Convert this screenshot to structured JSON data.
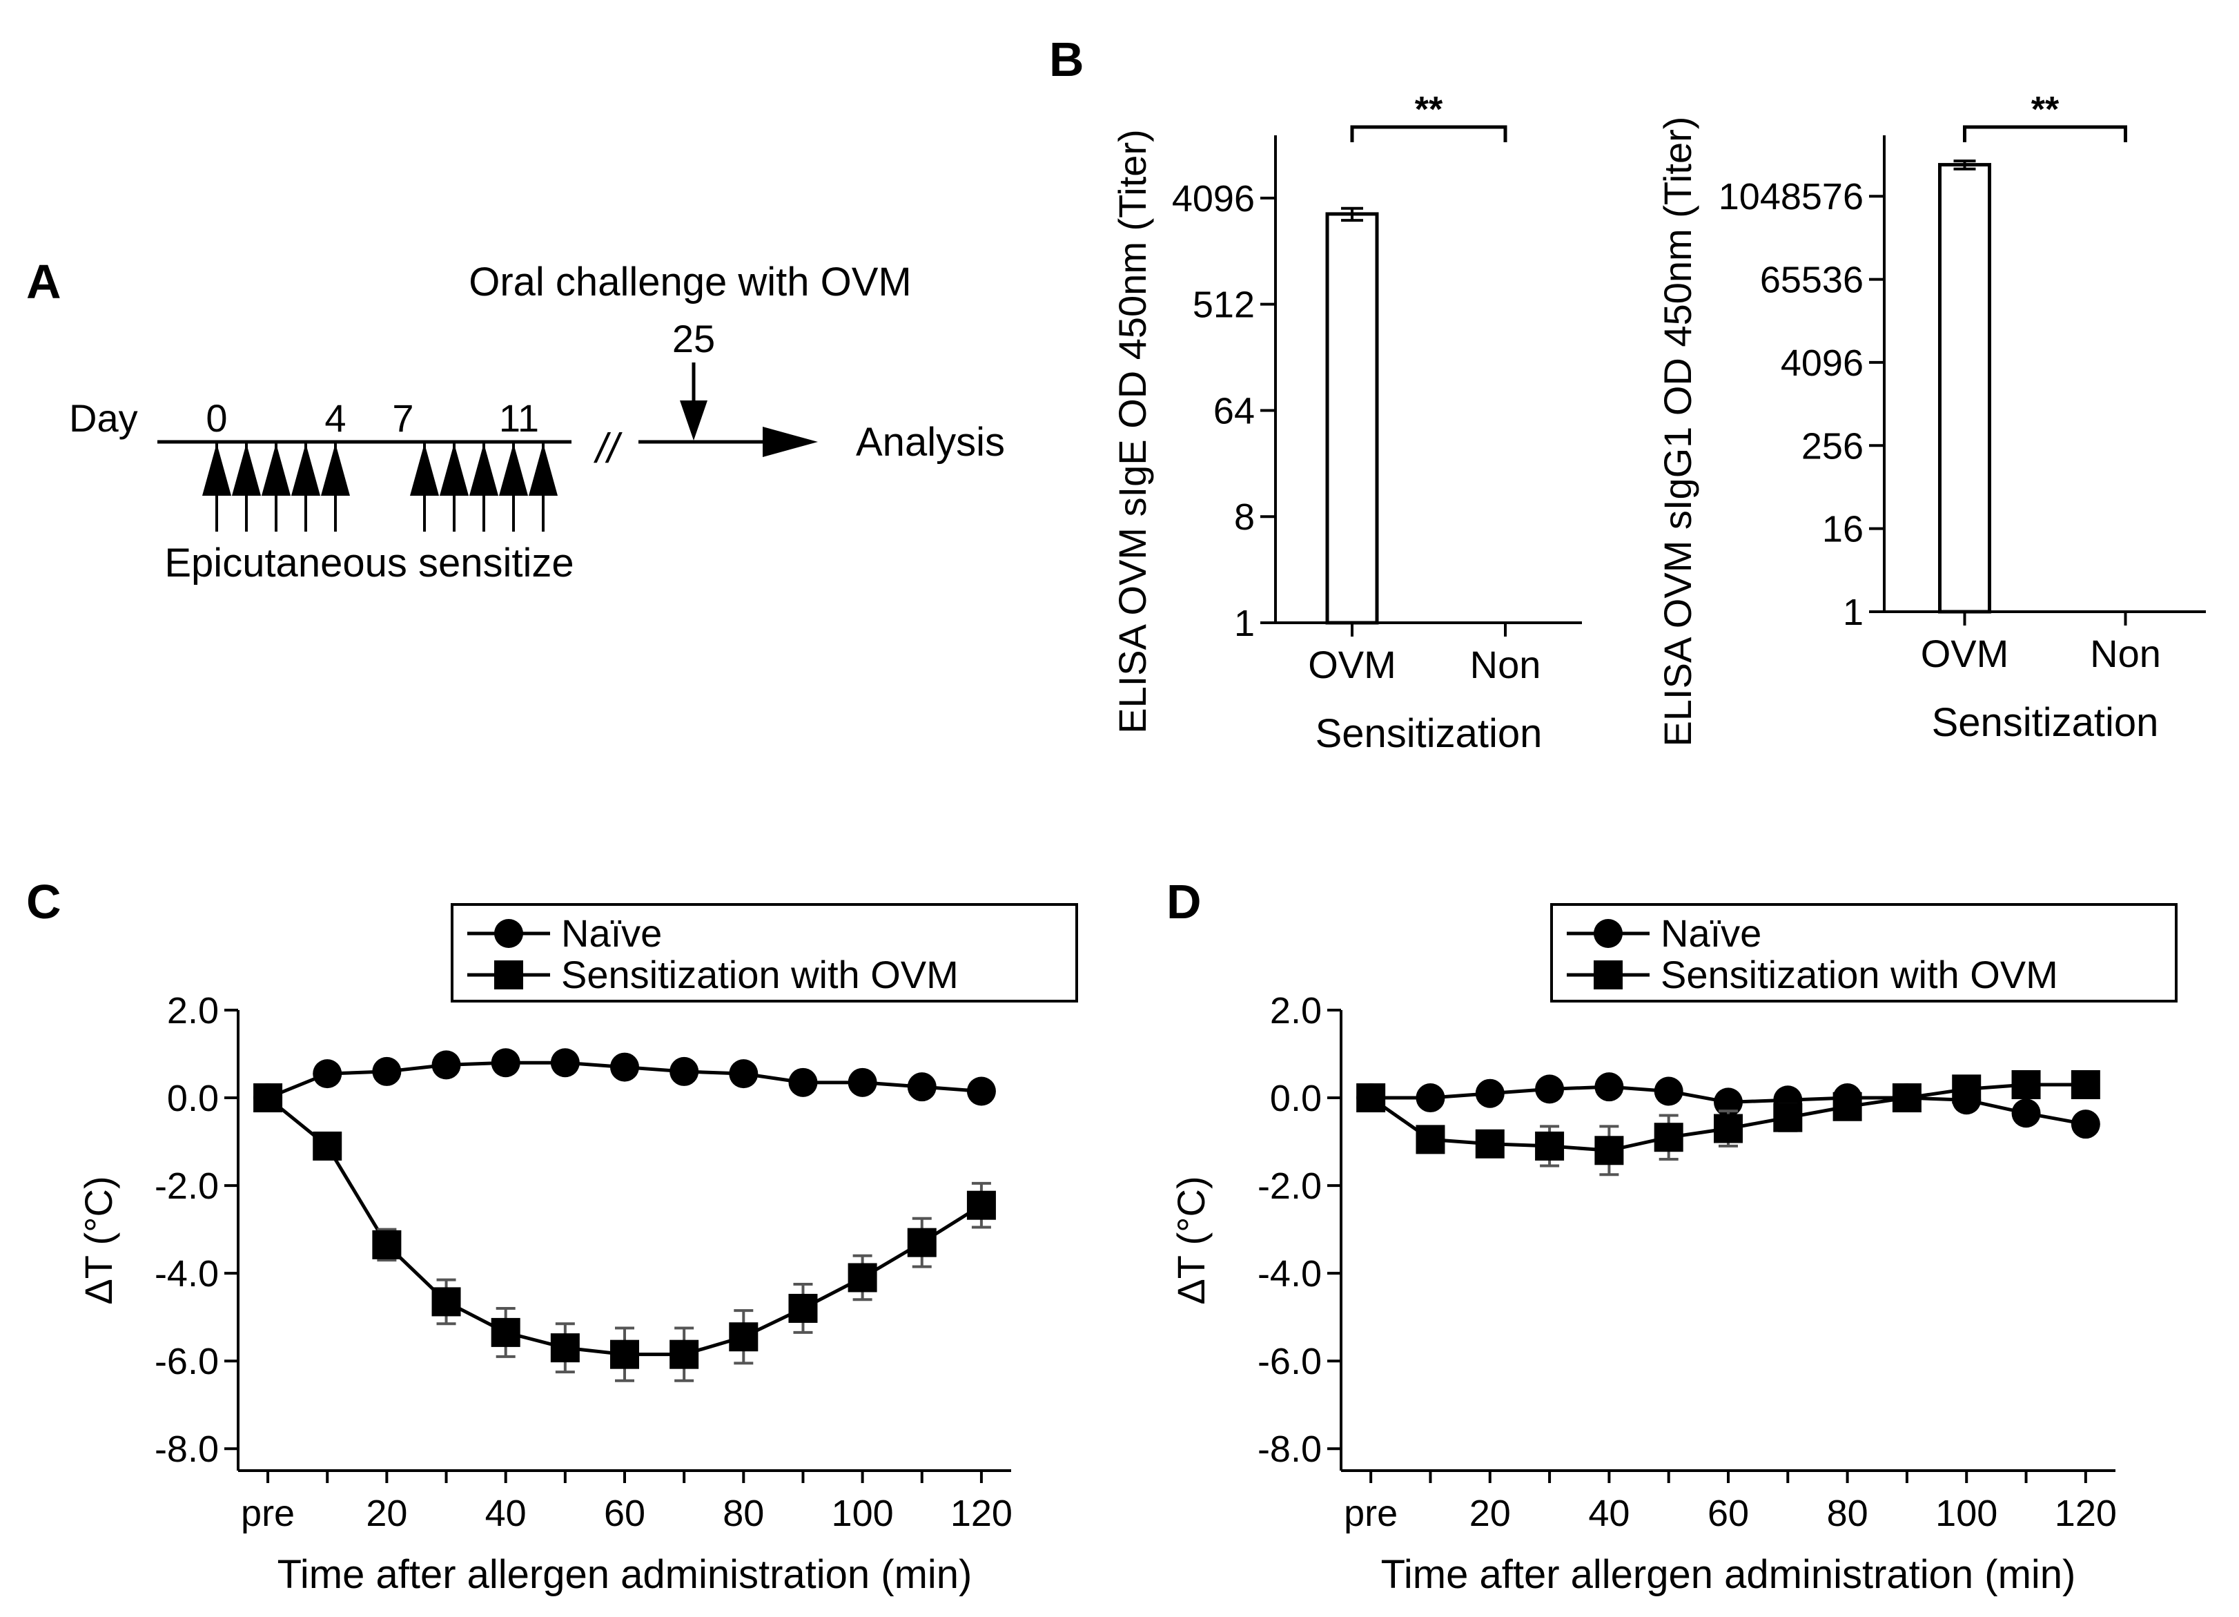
{
  "panel_a": {
    "letter": "A",
    "day_label": "Day",
    "day_ticks": [
      "0",
      "4",
      "7",
      "11"
    ],
    "challenge_label": "Oral challenge with OVM",
    "challenge_day": "25",
    "break_mark": "//",
    "end_label": "Analysis",
    "sensitize_label": "Epicutaneous sensitize",
    "sensitization_days": [
      0,
      1,
      2,
      3,
      4,
      7,
      8,
      9,
      10,
      11
    ]
  },
  "panel_b_letter": "B",
  "panel_c_letter": "C",
  "panel_d_letter": "D",
  "chart_data": [
    {
      "id": "B-IgE",
      "type": "bar",
      "scale": "log2",
      "ylabel": "ELISA OVM sIgE OD 450nm (Titer)",
      "xlabel": "Sensitization",
      "categories": [
        "OVM",
        "Non"
      ],
      "values": [
        3000,
        1
      ],
      "error": [
        350,
        0
      ],
      "yticks": [
        "1",
        "8",
        "64",
        "512",
        "4096"
      ],
      "ylim": [
        1,
        14000
      ],
      "significance": "**"
    },
    {
      "id": "B-IgG1",
      "type": "bar",
      "scale": "log2",
      "ylabel": "ELISA OVM sIgG1 OD 450nm (Titer)",
      "xlabel": "Sensitization",
      "categories": [
        "OVM",
        "Non"
      ],
      "values": [
        3000000,
        1
      ],
      "error": [
        400000,
        0
      ],
      "yticks": [
        "1",
        "16",
        "256",
        "4096",
        "65536",
        "1048576"
      ],
      "ylim": [
        1,
        8000000
      ],
      "significance": "**"
    },
    {
      "id": "C",
      "type": "line",
      "ylabel": "ΔT (°C)",
      "xlabel": "Time after allergen administration (min)",
      "x": [
        0,
        10,
        20,
        30,
        40,
        50,
        60,
        70,
        80,
        90,
        100,
        110,
        120
      ],
      "xticks": [
        "pre",
        "20",
        "40",
        "60",
        "80",
        "100",
        "120"
      ],
      "yticks": [
        "2.0",
        "0.0",
        "-2.0",
        "-4.0",
        "-6.0",
        "-8.0"
      ],
      "ylim": [
        -8.5,
        2.0
      ],
      "series": [
        {
          "name": "Naïve",
          "marker": "circle",
          "values": [
            0.0,
            0.55,
            0.6,
            0.75,
            0.8,
            0.8,
            0.7,
            0.6,
            0.55,
            0.35,
            0.35,
            0.25,
            0.15
          ],
          "error": [
            0,
            0,
            0,
            0,
            0,
            0,
            0,
            0,
            0,
            0,
            0,
            0,
            0
          ]
        },
        {
          "name": "Sensitization with OVM",
          "marker": "square",
          "values": [
            0.0,
            -1.1,
            -3.35,
            -4.65,
            -5.35,
            -5.7,
            -5.85,
            -5.85,
            -5.45,
            -4.8,
            -4.1,
            -3.3,
            -2.45
          ],
          "error": [
            0,
            0.1,
            0.35,
            0.5,
            0.55,
            0.55,
            0.6,
            0.6,
            0.6,
            0.55,
            0.5,
            0.55,
            0.5
          ]
        }
      ]
    },
    {
      "id": "D",
      "type": "line",
      "ylabel": "ΔT (°C)",
      "xlabel": "Time after allergen administration (min)",
      "x": [
        0,
        10,
        20,
        30,
        40,
        50,
        60,
        70,
        80,
        90,
        100,
        110,
        120
      ],
      "xticks": [
        "pre",
        "20",
        "40",
        "60",
        "80",
        "100",
        "120"
      ],
      "yticks": [
        "2.0",
        "0.0",
        "-2.0",
        "-4.0",
        "-6.0",
        "-8.0"
      ],
      "ylim": [
        -8.5,
        2.0
      ],
      "series": [
        {
          "name": "Naïve",
          "marker": "circle",
          "values": [
            0.0,
            0.0,
            0.1,
            0.2,
            0.25,
            0.15,
            -0.1,
            -0.05,
            0.0,
            0.0,
            -0.05,
            -0.35,
            -0.6
          ],
          "error": [
            0,
            0,
            0,
            0,
            0,
            0,
            0,
            0,
            0,
            0,
            0,
            0.15,
            0.2
          ]
        },
        {
          "name": "Sensitization with OVM",
          "marker": "square",
          "values": [
            0.0,
            -0.95,
            -1.05,
            -1.1,
            -1.2,
            -0.9,
            -0.7,
            -0.45,
            -0.2,
            0.0,
            0.2,
            0.3,
            0.3
          ],
          "error": [
            0,
            0.2,
            0.2,
            0.45,
            0.55,
            0.5,
            0.4,
            0.3,
            0.2,
            0.15,
            0.15,
            0.2,
            0.15
          ]
        }
      ]
    }
  ]
}
